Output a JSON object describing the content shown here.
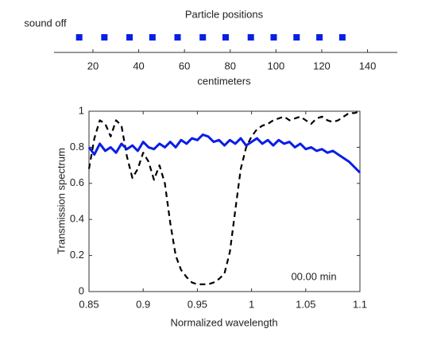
{
  "chart_data": [
    {
      "type": "strip",
      "title": "Particle positions",
      "annotation": "sound off",
      "xlabel": "centimeters",
      "x": [
        14,
        25,
        36,
        46,
        57,
        68,
        78,
        89,
        99,
        109,
        119,
        129
      ],
      "color": "#0a1ee6",
      "xlim": [
        3,
        153
      ],
      "xticks": [
        20,
        40,
        60,
        80,
        100,
        120,
        140
      ]
    },
    {
      "type": "line",
      "xlabel": "Normalized wavelength",
      "ylabel": "Transmission spectrum",
      "annotation": "00.00 min",
      "x": [
        0.85,
        0.855,
        0.86,
        0.865,
        0.87,
        0.875,
        0.88,
        0.885,
        0.89,
        0.895,
        0.9,
        0.905,
        0.91,
        0.915,
        0.92,
        0.925,
        0.93,
        0.935,
        0.94,
        0.945,
        0.95,
        0.955,
        0.96,
        0.965,
        0.97,
        0.975,
        0.98,
        0.985,
        0.99,
        0.995,
        1.0,
        1.005,
        1.01,
        1.015,
        1.02,
        1.025,
        1.03,
        1.035,
        1.04,
        1.045,
        1.05,
        1.055,
        1.06,
        1.065,
        1.07,
        1.075,
        1.08,
        1.085,
        1.09,
        1.095,
        1.1
      ],
      "series": [
        {
          "color": "#000000",
          "style": "dashed",
          "values": [
            0.68,
            0.85,
            0.95,
            0.93,
            0.86,
            0.95,
            0.92,
            0.75,
            0.63,
            0.68,
            0.77,
            0.72,
            0.62,
            0.7,
            0.6,
            0.38,
            0.2,
            0.12,
            0.08,
            0.05,
            0.04,
            0.04,
            0.04,
            0.05,
            0.07,
            0.1,
            0.22,
            0.45,
            0.68,
            0.8,
            0.86,
            0.9,
            0.92,
            0.93,
            0.95,
            0.96,
            0.97,
            0.95,
            0.96,
            0.97,
            0.95,
            0.93,
            0.96,
            0.97,
            0.95,
            0.94,
            0.95,
            0.97,
            0.99,
            0.99,
            1.0
          ]
        },
        {
          "color": "#0a1ee6",
          "style": "solid",
          "values": [
            0.8,
            0.76,
            0.82,
            0.78,
            0.8,
            0.77,
            0.82,
            0.79,
            0.81,
            0.78,
            0.83,
            0.8,
            0.79,
            0.82,
            0.8,
            0.83,
            0.8,
            0.84,
            0.82,
            0.85,
            0.84,
            0.87,
            0.86,
            0.83,
            0.84,
            0.81,
            0.84,
            0.82,
            0.85,
            0.81,
            0.83,
            0.85,
            0.82,
            0.84,
            0.81,
            0.84,
            0.82,
            0.83,
            0.8,
            0.82,
            0.79,
            0.8,
            0.78,
            0.79,
            0.77,
            0.78,
            0.76,
            0.74,
            0.72,
            0.69,
            0.66
          ]
        }
      ],
      "xlim": [
        0.85,
        1.1
      ],
      "xticks": [
        0.85,
        0.9,
        0.95,
        1,
        1.05,
        1.1
      ],
      "ylim": [
        0,
        1
      ],
      "yticks": [
        0,
        0.2,
        0.4,
        0.6,
        0.8,
        1
      ]
    }
  ]
}
